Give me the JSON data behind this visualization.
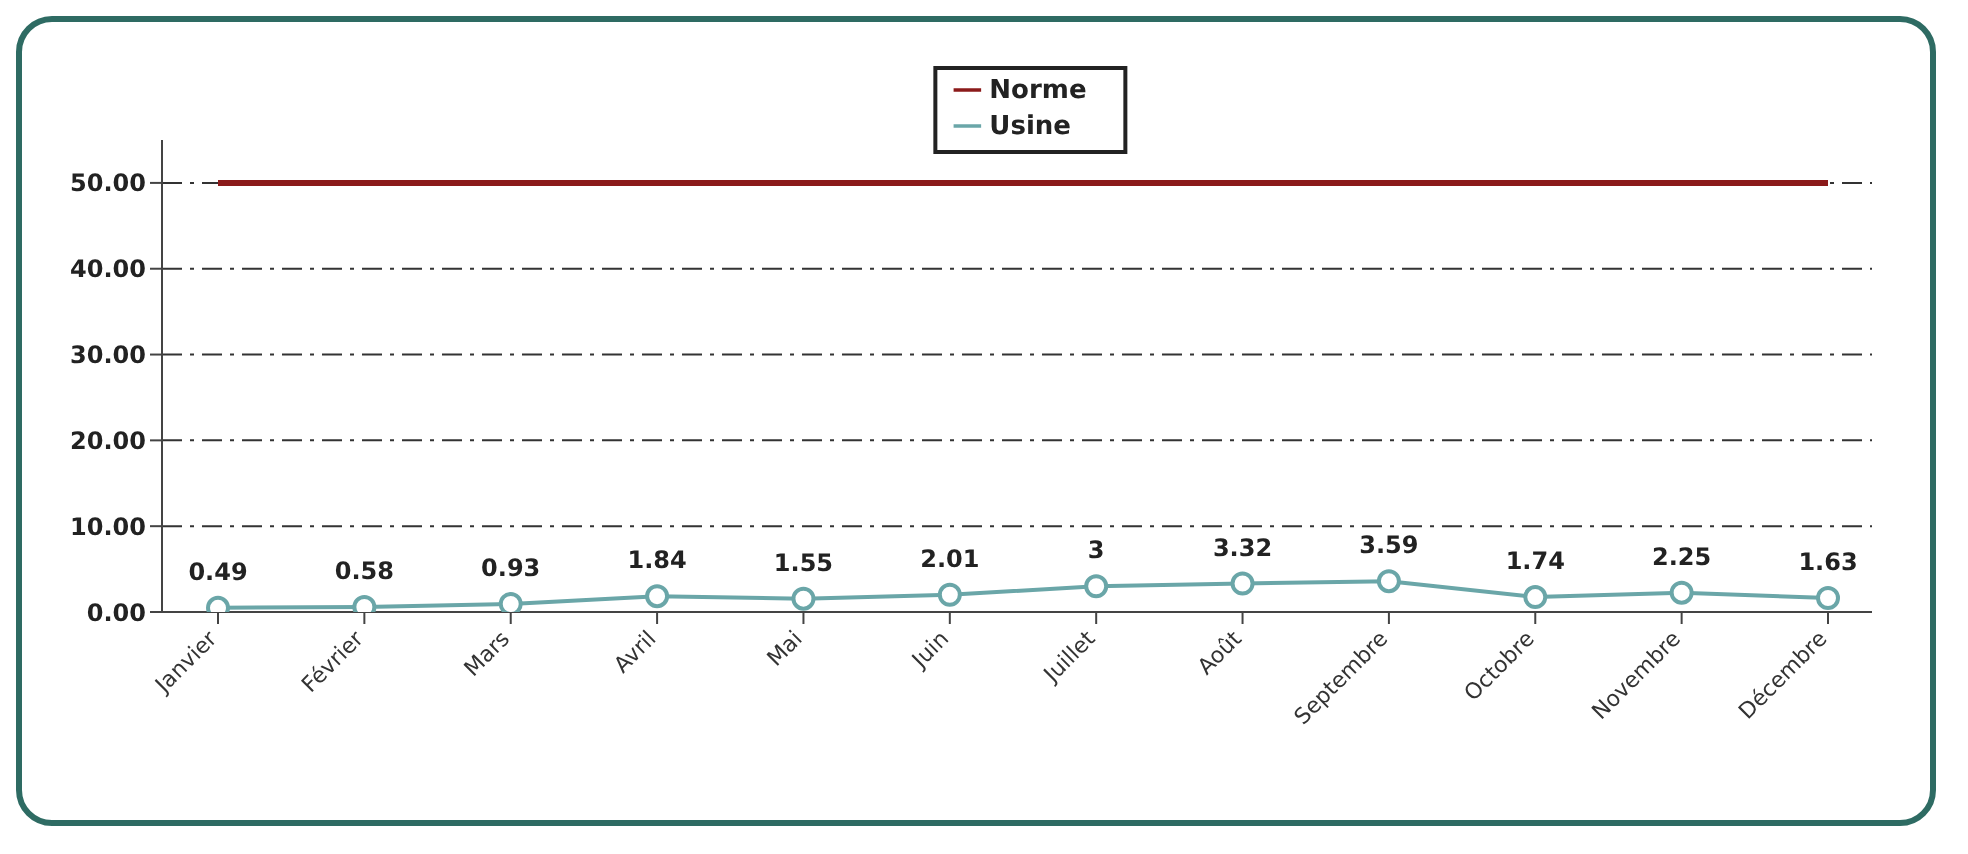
{
  "chart_data": {
    "type": "line",
    "categories": [
      "Janvier",
      "Février",
      "Mars",
      "Avril",
      "Mai",
      "Juin",
      "Juillet",
      "Août",
      "Septembre",
      "Octobre",
      "Novembre",
      "Décembre"
    ],
    "series": [
      {
        "name": "Norme",
        "color": "#8b1a1a",
        "marker": "none",
        "values": [
          50,
          50,
          50,
          50,
          50,
          50,
          50,
          50,
          50,
          50,
          50,
          50
        ]
      },
      {
        "name": "Usine",
        "color": "#6aa6a8",
        "marker": "circle",
        "values": [
          0.49,
          0.58,
          0.93,
          1.84,
          1.55,
          2.01,
          3,
          3.32,
          3.59,
          1.74,
          2.25,
          1.63
        ],
        "value_labels": [
          "0.49",
          "0.58",
          "0.93",
          "1.84",
          "1.55",
          "2.01",
          "3",
          "3.32",
          "3.59",
          "1.74",
          "2.25",
          "1.63"
        ]
      }
    ],
    "ylim": [
      0,
      55
    ],
    "yticks": [
      {
        "value": 0,
        "label": "0.00"
      },
      {
        "value": 10,
        "label": "10.00"
      },
      {
        "value": 20,
        "label": "20.00"
      },
      {
        "value": 30,
        "label": "30.00"
      },
      {
        "value": 40,
        "label": "40.00"
      },
      {
        "value": 50,
        "label": "50.00"
      }
    ],
    "grid": "y",
    "legend": "top"
  }
}
